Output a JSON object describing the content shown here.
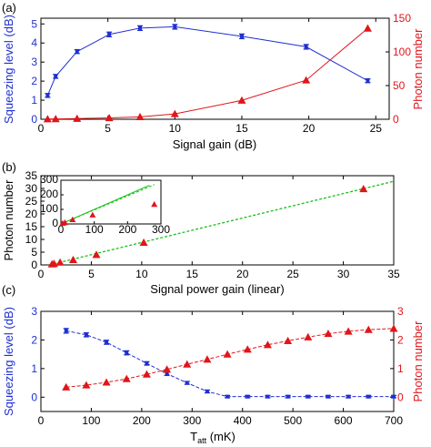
{
  "colors": {
    "blue": "#1f2fd1",
    "red": "#e0161a",
    "green": "#17c217",
    "black": "#000000"
  },
  "chart_data": [
    {
      "panel": "(a)",
      "type": "line",
      "xlabel": "Signal gain (dB)",
      "xlim": [
        0,
        26
      ],
      "xticks": [
        0,
        5,
        10,
        15,
        20,
        25
      ],
      "y_left": {
        "label": "Squeezing level (dB)",
        "lim": [
          0,
          5.3
        ],
        "ticks": [
          0,
          1,
          2,
          3,
          4,
          5
        ]
      },
      "y_right": {
        "label": "Photon number",
        "lim": [
          0,
          150
        ],
        "ticks": [
          0,
          50,
          100,
          150
        ]
      },
      "series": [
        {
          "axis": "left",
          "color": "blue",
          "marker": "errorbar",
          "x": [
            0.5,
            1.1,
            2.7,
            5.1,
            7.4,
            10.0,
            15.0,
            19.8,
            24.4
          ],
          "y": [
            1.25,
            2.25,
            3.55,
            4.45,
            4.78,
            4.85,
            4.35,
            3.8,
            2.02
          ],
          "err": [
            0.1,
            0.1,
            0.1,
            0.12,
            0.12,
            0.12,
            0.12,
            0.12,
            0.1
          ]
        },
        {
          "axis": "right",
          "color": "red",
          "marker": "triangle",
          "x": [
            0.5,
            1.1,
            2.7,
            5.1,
            7.4,
            10.0,
            15.0,
            19.8,
            24.4
          ],
          "y": [
            0.3,
            0.5,
            1.0,
            2.0,
            3.5,
            8.0,
            28.0,
            58.0,
            135.0
          ]
        }
      ]
    },
    {
      "panel": "(b)",
      "type": "scatter",
      "xlabel": "Signal power gain (linear)",
      "ylabel": "Photon number",
      "xlim": [
        0,
        35
      ],
      "ylim": [
        0,
        35
      ],
      "xticks": [
        0,
        5,
        10,
        15,
        20,
        25,
        30,
        35
      ],
      "yticks": [
        0,
        5,
        10,
        15,
        20,
        25,
        30,
        35
      ],
      "series": [
        {
          "color": "red",
          "marker": "triangle",
          "x": [
            1.1,
            1.3,
            1.9,
            3.2,
            5.5,
            10.2,
            32.0
          ],
          "y": [
            0.3,
            0.5,
            1.0,
            2.0,
            4.0,
            8.8,
            29.8
          ]
        },
        {
          "color": "green",
          "marker": "dashed-line",
          "x": [
            0,
            35
          ],
          "y": [
            -0.8,
            32.8
          ]
        }
      ],
      "inset": {
        "xlim": [
          0,
          300
        ],
        "ylim": [
          0,
          300
        ],
        "xticks": [
          0,
          100,
          200,
          300
        ],
        "yticks": [
          0,
          100,
          200,
          300
        ],
        "series": [
          {
            "color": "red",
            "marker": "triangle",
            "x": [
              5,
              12,
              35,
              95,
              280
            ],
            "y": [
              5,
              10,
              30,
              62,
              135
            ]
          },
          {
            "color": "green",
            "marker": "dashed-line",
            "x": [
              0,
              280
            ],
            "y": [
              0,
              270
            ]
          },
          {
            "color": "green",
            "marker": "solid-line",
            "x": [
              0,
              265
            ],
            "y": [
              0,
              265
            ]
          }
        ]
      }
    },
    {
      "panel": "(c)",
      "type": "line",
      "xlabel": "T",
      "xlabel_sub": "att",
      "xlabel_unit": " (mK)",
      "xlim": [
        0,
        700
      ],
      "xticks": [
        0,
        100,
        200,
        300,
        400,
        500,
        600,
        700
      ],
      "y_left": {
        "label": "Squeezing level (dB)",
        "lim": [
          -0.5,
          3
        ],
        "ticks": [
          0,
          1,
          2,
          3
        ]
      },
      "y_right": {
        "label": "Photon number",
        "lim": [
          -0.5,
          3
        ],
        "ticks": [
          0,
          1,
          2,
          3
        ]
      },
      "series": [
        {
          "axis": "left",
          "color": "blue",
          "marker": "errorbar",
          "x": [
            50,
            90,
            130,
            170,
            210,
            250,
            290,
            330,
            370,
            410,
            450,
            490,
            530,
            570,
            610,
            650,
            700
          ],
          "y": [
            2.32,
            2.18,
            1.92,
            1.55,
            1.18,
            0.82,
            0.5,
            0.2,
            0.02,
            0.02,
            0.02,
            0.02,
            0.02,
            0.02,
            0.02,
            0.02,
            0.02
          ],
          "err": [
            0.08,
            0.07,
            0.07,
            0.07,
            0.06,
            0.06,
            0.05,
            0.05,
            0.04,
            0.04,
            0.04,
            0.04,
            0.04,
            0.04,
            0.04,
            0.04,
            0.04
          ]
        },
        {
          "axis": "right",
          "color": "red",
          "marker": "triangle",
          "x": [
            50,
            90,
            130,
            170,
            210,
            250,
            290,
            330,
            370,
            410,
            450,
            490,
            530,
            570,
            610,
            650,
            700
          ],
          "y": [
            0.35,
            0.42,
            0.52,
            0.64,
            0.8,
            0.97,
            1.15,
            1.32,
            1.5,
            1.67,
            1.83,
            1.97,
            2.1,
            2.22,
            2.3,
            2.36,
            2.4
          ]
        }
      ]
    }
  ]
}
